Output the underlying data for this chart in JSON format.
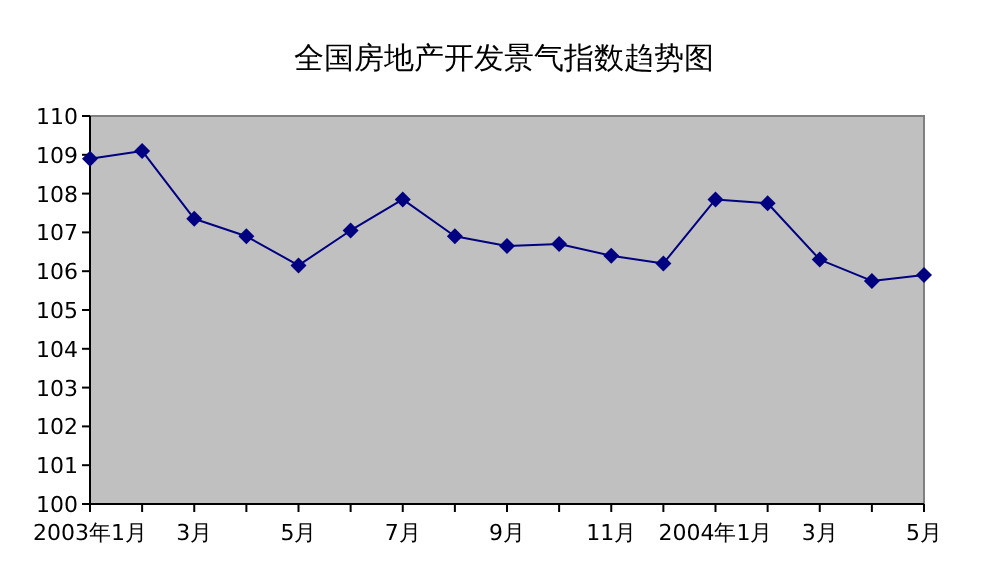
{
  "chart_data": {
    "type": "line",
    "title": "全国房地产开发景气指数趋势图",
    "categories": [
      "2003年1月",
      null,
      "3月",
      null,
      "5月",
      null,
      "7月",
      null,
      "9月",
      null,
      "11月",
      null,
      "2004年1月",
      null,
      "3月",
      null,
      "5月"
    ],
    "series": [
      {
        "color": "#000080",
        "values": [
          108.9,
          109.1,
          107.35,
          106.9,
          106.15,
          107.05,
          107.85,
          106.9,
          106.65,
          106.7,
          106.4,
          106.2,
          107.85,
          107.75,
          106.3,
          105.75,
          105.9
        ]
      }
    ],
    "ylim": [
      100,
      110
    ],
    "yticks": [
      100,
      101,
      102,
      103,
      104,
      105,
      106,
      107,
      108,
      109,
      110
    ],
    "marker": "diamond",
    "line_style": "solid"
  }
}
